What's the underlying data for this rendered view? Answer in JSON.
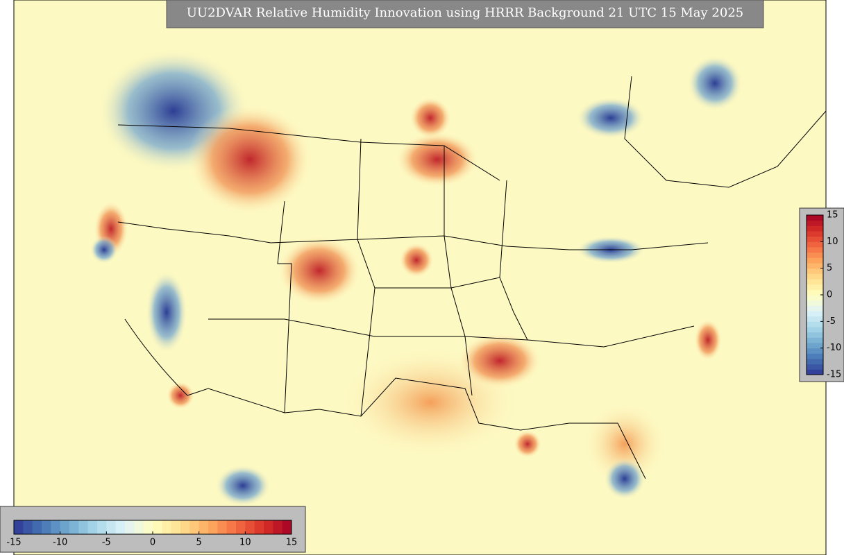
{
  "title": "UU2DVAR Relative Humidity Innovation using HRRR Background 21 UTC 15 May 2025",
  "colorbar_right": {
    "ticks": [
      -15,
      -10,
      -5,
      0,
      5,
      10,
      15
    ]
  },
  "colorbar_bottom": {
    "ticks": [
      -15,
      -10,
      -5,
      0,
      5,
      10,
      15
    ]
  }
}
